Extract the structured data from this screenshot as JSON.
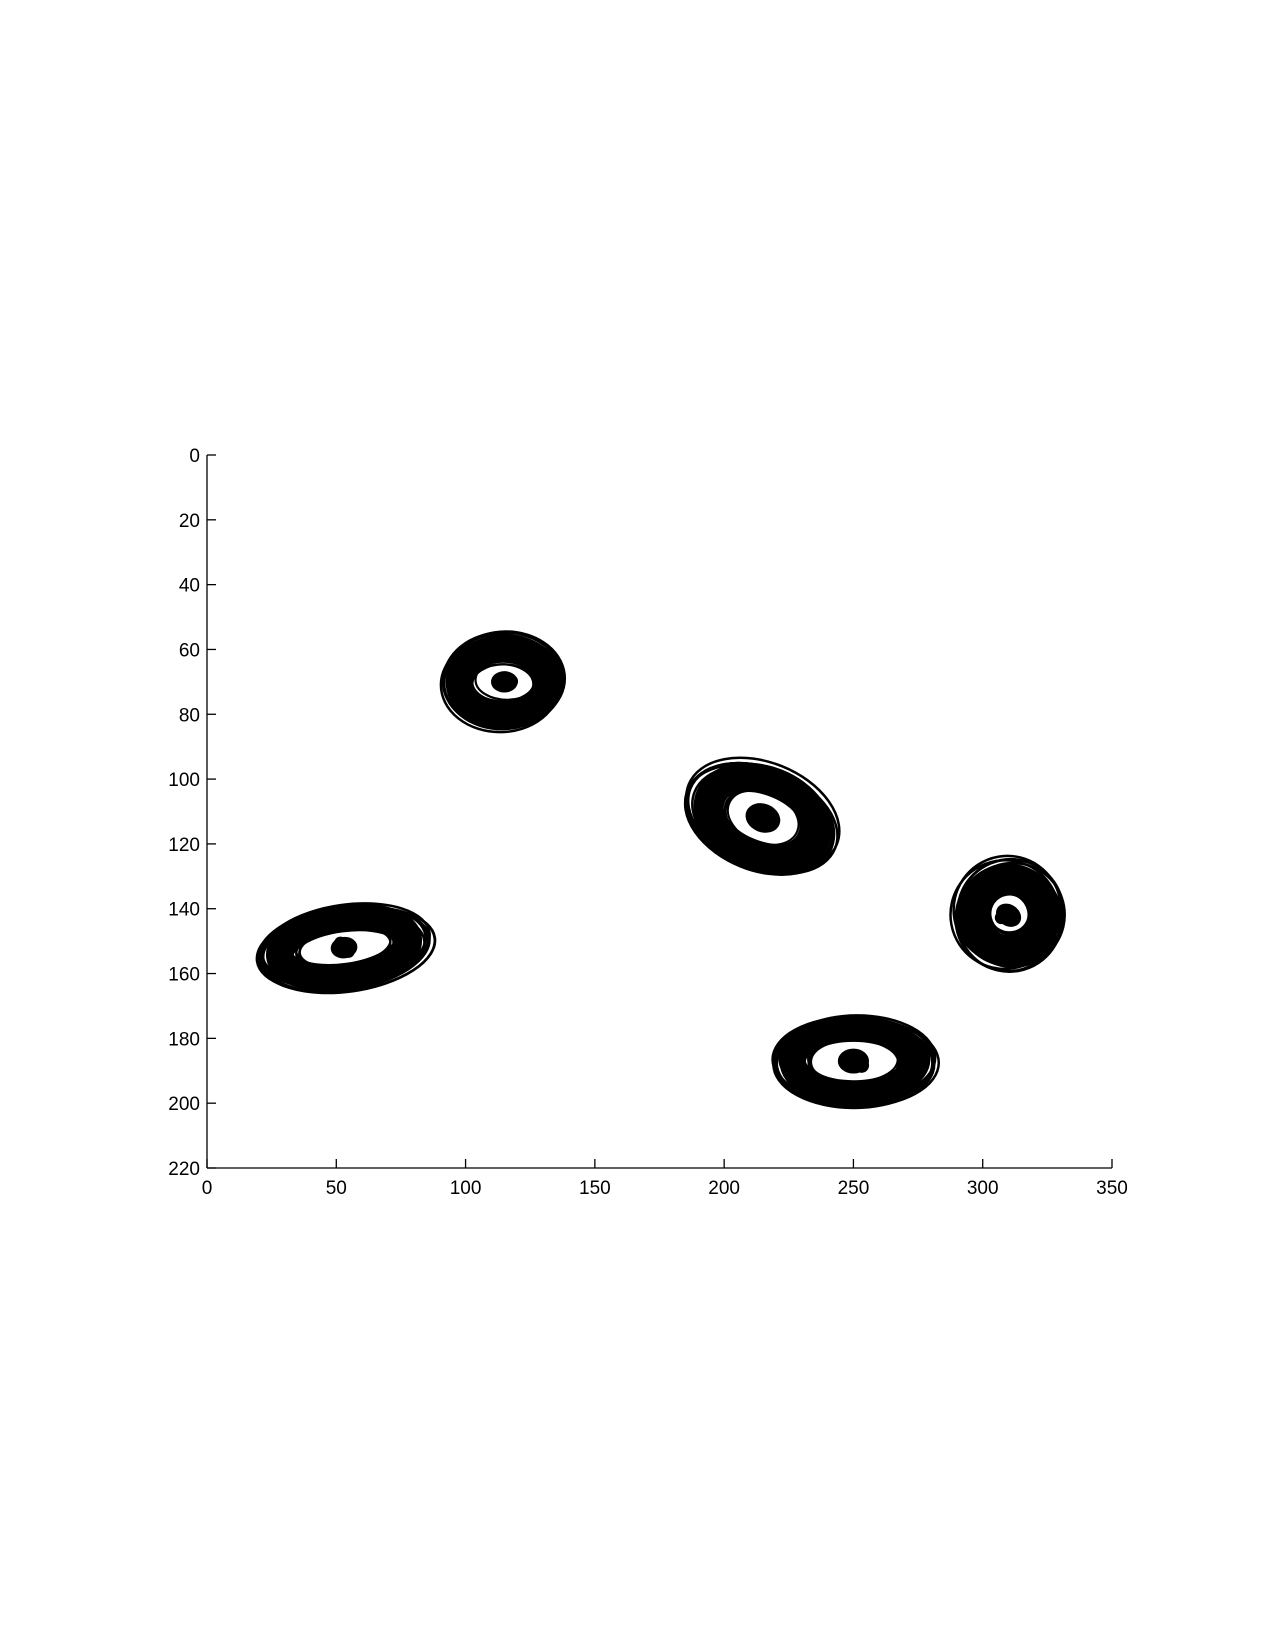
{
  "chart_data": {
    "type": "contour",
    "title": "",
    "xlabel": "",
    "ylabel": "",
    "xlim": [
      0,
      350
    ],
    "ylim": [
      0,
      220
    ],
    "y_axis_reversed": true,
    "grid": false,
    "legend": "none",
    "x_ticks": [
      "0",
      "50",
      "100",
      "150",
      "200",
      "250",
      "300",
      "350"
    ],
    "y_ticks": [
      "0",
      "20",
      "40",
      "60",
      "80",
      "100",
      "120",
      "140",
      "160",
      "180",
      "200",
      "220"
    ],
    "line_color": "#000000",
    "clusters": [
      {
        "center": [
          115,
          70
        ],
        "outer_radius": [
          22,
          14
        ],
        "inner_radius": [
          12,
          6
        ],
        "tilt_deg": 0
      },
      {
        "center": [
          215,
          112
        ],
        "outer_radius": [
          29,
          15
        ],
        "inner_radius": [
          15,
          8
        ],
        "tilt_deg": 22
      },
      {
        "center": [
          53,
          152
        ],
        "outer_radius": [
          32,
          12
        ],
        "inner_radius": [
          18,
          6
        ],
        "tilt_deg": -8
      },
      {
        "center": [
          310,
          142
        ],
        "outer_radius": [
          20,
          16
        ],
        "inner_radius": [
          8,
          6
        ],
        "tilt_deg": 35
      },
      {
        "center": [
          250,
          187
        ],
        "outer_radius": [
          30,
          13
        ],
        "inner_radius": [
          17,
          7
        ],
        "tilt_deg": 0
      }
    ]
  }
}
